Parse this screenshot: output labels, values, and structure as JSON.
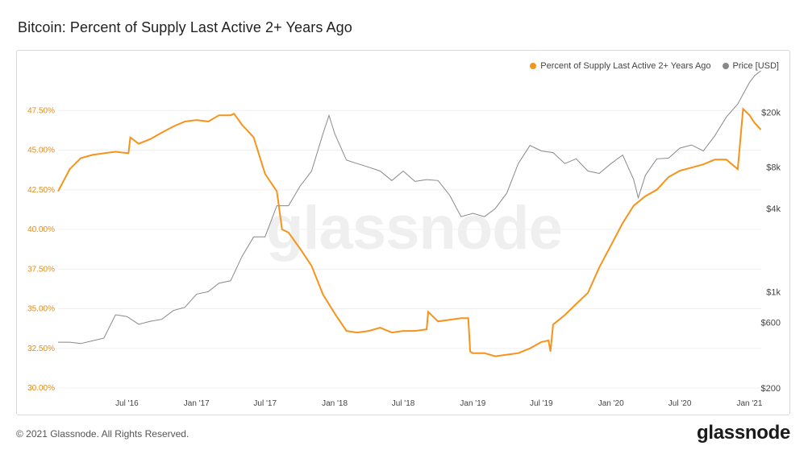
{
  "title": "Bitcoin: Percent of Supply Last Active 2+ Years Ago",
  "footer": "© 2021 Glassnode. All Rights Reserved.",
  "brand": "glassnode",
  "watermark": "glassnode",
  "colors": {
    "supply": "#f7931a",
    "price": "#888888"
  },
  "chart_data": {
    "type": "line",
    "x_ticks": [
      "Jul '16",
      "Jan '17",
      "Jul '17",
      "Jan '18",
      "Jul '18",
      "Jan '19",
      "Jul '19",
      "Jan '20",
      "Jul '20",
      "Jan '21"
    ],
    "x_range": [
      "2016-01-01",
      "2021-02-01"
    ],
    "y_left": {
      "ticks": [
        "30.00%",
        "32.50%",
        "35.00%",
        "37.50%",
        "40.00%",
        "42.50%",
        "45.00%",
        "47.50%"
      ],
      "range": [
        30,
        50
      ]
    },
    "y_right": {
      "ticks": [
        "$200",
        "$600",
        "$1k",
        "$4k",
        "$8k",
        "$20k"
      ],
      "tick_values": [
        200,
        600,
        1000,
        4000,
        8000,
        20000
      ],
      "scale": "log",
      "range": [
        200,
        40000
      ]
    },
    "legend_position": "top-right",
    "series": [
      {
        "name": "Percent of Supply Last Active 2+ Years Ago",
        "axis": "left",
        "points": [
          [
            "2016-01-01",
            42.4
          ],
          [
            "2016-02-01",
            43.8
          ],
          [
            "2016-03-01",
            44.5
          ],
          [
            "2016-04-01",
            44.7
          ],
          [
            "2016-05-01",
            44.8
          ],
          [
            "2016-06-01",
            44.9
          ],
          [
            "2016-07-05",
            44.8
          ],
          [
            "2016-07-10",
            45.8
          ],
          [
            "2016-08-01",
            45.4
          ],
          [
            "2016-09-01",
            45.7
          ],
          [
            "2016-10-01",
            46.1
          ],
          [
            "2016-11-01",
            46.5
          ],
          [
            "2016-12-01",
            46.8
          ],
          [
            "2017-01-01",
            46.9
          ],
          [
            "2017-02-01",
            46.8
          ],
          [
            "2017-03-01",
            47.2
          ],
          [
            "2017-04-01",
            47.2
          ],
          [
            "2017-04-10",
            47.3
          ],
          [
            "2017-05-01",
            46.6
          ],
          [
            "2017-06-01",
            45.8
          ],
          [
            "2017-07-01",
            43.5
          ],
          [
            "2017-08-01",
            42.4
          ],
          [
            "2017-08-15",
            40.0
          ],
          [
            "2017-09-01",
            39.8
          ],
          [
            "2017-10-01",
            38.8
          ],
          [
            "2017-11-01",
            37.7
          ],
          [
            "2017-12-01",
            35.9
          ],
          [
            "2018-01-01",
            34.7
          ],
          [
            "2018-02-01",
            33.6
          ],
          [
            "2018-03-01",
            33.5
          ],
          [
            "2018-04-01",
            33.6
          ],
          [
            "2018-05-01",
            33.8
          ],
          [
            "2018-06-01",
            33.5
          ],
          [
            "2018-07-01",
            33.6
          ],
          [
            "2018-08-01",
            33.6
          ],
          [
            "2018-09-01",
            33.7
          ],
          [
            "2018-09-05",
            34.8
          ],
          [
            "2018-10-01",
            34.2
          ],
          [
            "2018-11-01",
            34.3
          ],
          [
            "2018-12-01",
            34.4
          ],
          [
            "2018-12-20",
            34.4
          ],
          [
            "2018-12-25",
            32.3
          ],
          [
            "2019-01-01",
            32.2
          ],
          [
            "2019-02-01",
            32.2
          ],
          [
            "2019-03-01",
            32.0
          ],
          [
            "2019-04-01",
            32.1
          ],
          [
            "2019-05-01",
            32.2
          ],
          [
            "2019-06-01",
            32.5
          ],
          [
            "2019-07-01",
            32.9
          ],
          [
            "2019-07-20",
            33.0
          ],
          [
            "2019-07-25",
            32.3
          ],
          [
            "2019-08-01",
            34.0
          ],
          [
            "2019-09-01",
            34.6
          ],
          [
            "2019-10-01",
            35.3
          ],
          [
            "2019-11-01",
            36.0
          ],
          [
            "2019-12-01",
            37.6
          ],
          [
            "2020-01-01",
            39.0
          ],
          [
            "2020-02-01",
            40.4
          ],
          [
            "2020-03-01",
            41.5
          ],
          [
            "2020-04-01",
            42.1
          ],
          [
            "2020-05-01",
            42.5
          ],
          [
            "2020-06-01",
            43.3
          ],
          [
            "2020-07-01",
            43.7
          ],
          [
            "2020-08-01",
            43.9
          ],
          [
            "2020-09-01",
            44.1
          ],
          [
            "2020-10-01",
            44.4
          ],
          [
            "2020-11-01",
            44.4
          ],
          [
            "2020-12-01",
            43.8
          ],
          [
            "2020-12-15",
            47.6
          ],
          [
            "2021-01-01",
            47.2
          ],
          [
            "2021-01-15",
            46.7
          ],
          [
            "2021-01-31",
            46.3
          ]
        ]
      },
      {
        "name": "Price [USD]",
        "axis": "right",
        "points": [
          [
            "2016-01-01",
            430
          ],
          [
            "2016-02-01",
            430
          ],
          [
            "2016-03-01",
            420
          ],
          [
            "2016-04-01",
            440
          ],
          [
            "2016-05-01",
            460
          ],
          [
            "2016-06-01",
            680
          ],
          [
            "2016-07-01",
            660
          ],
          [
            "2016-08-01",
            580
          ],
          [
            "2016-09-01",
            610
          ],
          [
            "2016-10-01",
            630
          ],
          [
            "2016-11-01",
            730
          ],
          [
            "2016-12-01",
            770
          ],
          [
            "2017-01-01",
            960
          ],
          [
            "2017-02-01",
            1000
          ],
          [
            "2017-03-01",
            1150
          ],
          [
            "2017-04-01",
            1200
          ],
          [
            "2017-05-01",
            1800
          ],
          [
            "2017-06-01",
            2500
          ],
          [
            "2017-07-01",
            2500
          ],
          [
            "2017-08-01",
            4200
          ],
          [
            "2017-09-01",
            4200
          ],
          [
            "2017-10-01",
            5800
          ],
          [
            "2017-11-01",
            7500
          ],
          [
            "2017-12-01",
            14000
          ],
          [
            "2017-12-17",
            19000
          ],
          [
            "2018-01-01",
            14000
          ],
          [
            "2018-02-01",
            9000
          ],
          [
            "2018-03-01",
            8500
          ],
          [
            "2018-04-01",
            8000
          ],
          [
            "2018-05-01",
            7500
          ],
          [
            "2018-06-01",
            6400
          ],
          [
            "2018-07-01",
            7500
          ],
          [
            "2018-08-01",
            6300
          ],
          [
            "2018-09-01",
            6500
          ],
          [
            "2018-10-01",
            6400
          ],
          [
            "2018-11-01",
            5000
          ],
          [
            "2018-12-01",
            3500
          ],
          [
            "2019-01-01",
            3700
          ],
          [
            "2019-02-01",
            3500
          ],
          [
            "2019-03-01",
            4000
          ],
          [
            "2019-04-01",
            5200
          ],
          [
            "2019-05-01",
            8500
          ],
          [
            "2019-06-01",
            11500
          ],
          [
            "2019-07-01",
            10500
          ],
          [
            "2019-08-01",
            10200
          ],
          [
            "2019-09-01",
            8500
          ],
          [
            "2019-10-01",
            9200
          ],
          [
            "2019-11-01",
            7500
          ],
          [
            "2019-12-01",
            7200
          ],
          [
            "2020-01-01",
            8500
          ],
          [
            "2020-02-01",
            9800
          ],
          [
            "2020-03-01",
            6500
          ],
          [
            "2020-03-13",
            4800
          ],
          [
            "2020-04-01",
            7000
          ],
          [
            "2020-05-01",
            9200
          ],
          [
            "2020-06-01",
            9300
          ],
          [
            "2020-07-01",
            11000
          ],
          [
            "2020-08-01",
            11600
          ],
          [
            "2020-09-01",
            10500
          ],
          [
            "2020-10-01",
            13500
          ],
          [
            "2020-11-01",
            18500
          ],
          [
            "2020-12-01",
            23000
          ],
          [
            "2021-01-01",
            33000
          ],
          [
            "2021-01-15",
            37000
          ],
          [
            "2021-01-31",
            40000
          ]
        ]
      }
    ]
  }
}
